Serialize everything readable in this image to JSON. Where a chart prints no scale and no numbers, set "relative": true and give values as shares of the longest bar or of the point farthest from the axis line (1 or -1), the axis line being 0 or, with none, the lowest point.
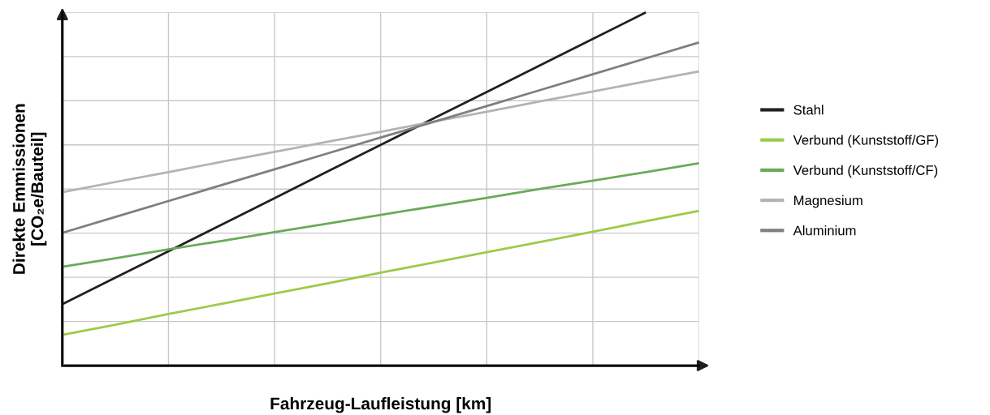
{
  "chart_data": {
    "type": "line",
    "relative": true,
    "xlabel": "Fahrzeug-Laufleistung [km]",
    "ylabel": "Direkte Emmissionen\n[CO₂e/Bauteil]",
    "categories": [
      null,
      null,
      null,
      null,
      null,
      null,
      null,
      null,
      null,
      null,
      null,
      null,
      null
    ],
    "tick_labels": false,
    "grid": true,
    "legend": "right",
    "marker": "none",
    "line_style": "solid",
    "series": [
      {
        "name": "Stahl",
        "color": "#231f20",
        "values": [
          0.174,
          0.249,
          0.324,
          0.399,
          0.474,
          0.55,
          0.625,
          0.7,
          0.775,
          0.85,
          0.925,
          1.0,
          null
        ]
      },
      {
        "name": "Verbund (Kunststoff/GF)",
        "color": "#9ccb4a",
        "values": [
          0.087,
          0.116,
          0.146,
          0.175,
          0.204,
          0.233,
          0.263,
          0.292,
          0.321,
          0.35,
          0.379,
          0.409,
          0.438
        ]
      },
      {
        "name": "Verbund (Kunststoff/CF)",
        "color": "#6aaa5a",
        "values": [
          0.28,
          0.304,
          0.329,
          0.353,
          0.378,
          0.402,
          0.427,
          0.451,
          0.475,
          0.5,
          0.524,
          0.548,
          0.573
        ]
      },
      {
        "name": "Magnesium",
        "color": "#b3b3b3",
        "values": [
          0.491,
          0.52,
          0.548,
          0.577,
          0.605,
          0.634,
          0.662,
          0.691,
          0.719,
          0.748,
          0.776,
          0.805,
          0.833
        ]
      },
      {
        "name": "Aluminium",
        "color": "#7f7f7f",
        "values": [
          0.376,
          0.421,
          0.466,
          0.511,
          0.556,
          0.601,
          0.646,
          0.69,
          0.735,
          0.78,
          0.825,
          0.87,
          0.915
        ]
      }
    ]
  }
}
